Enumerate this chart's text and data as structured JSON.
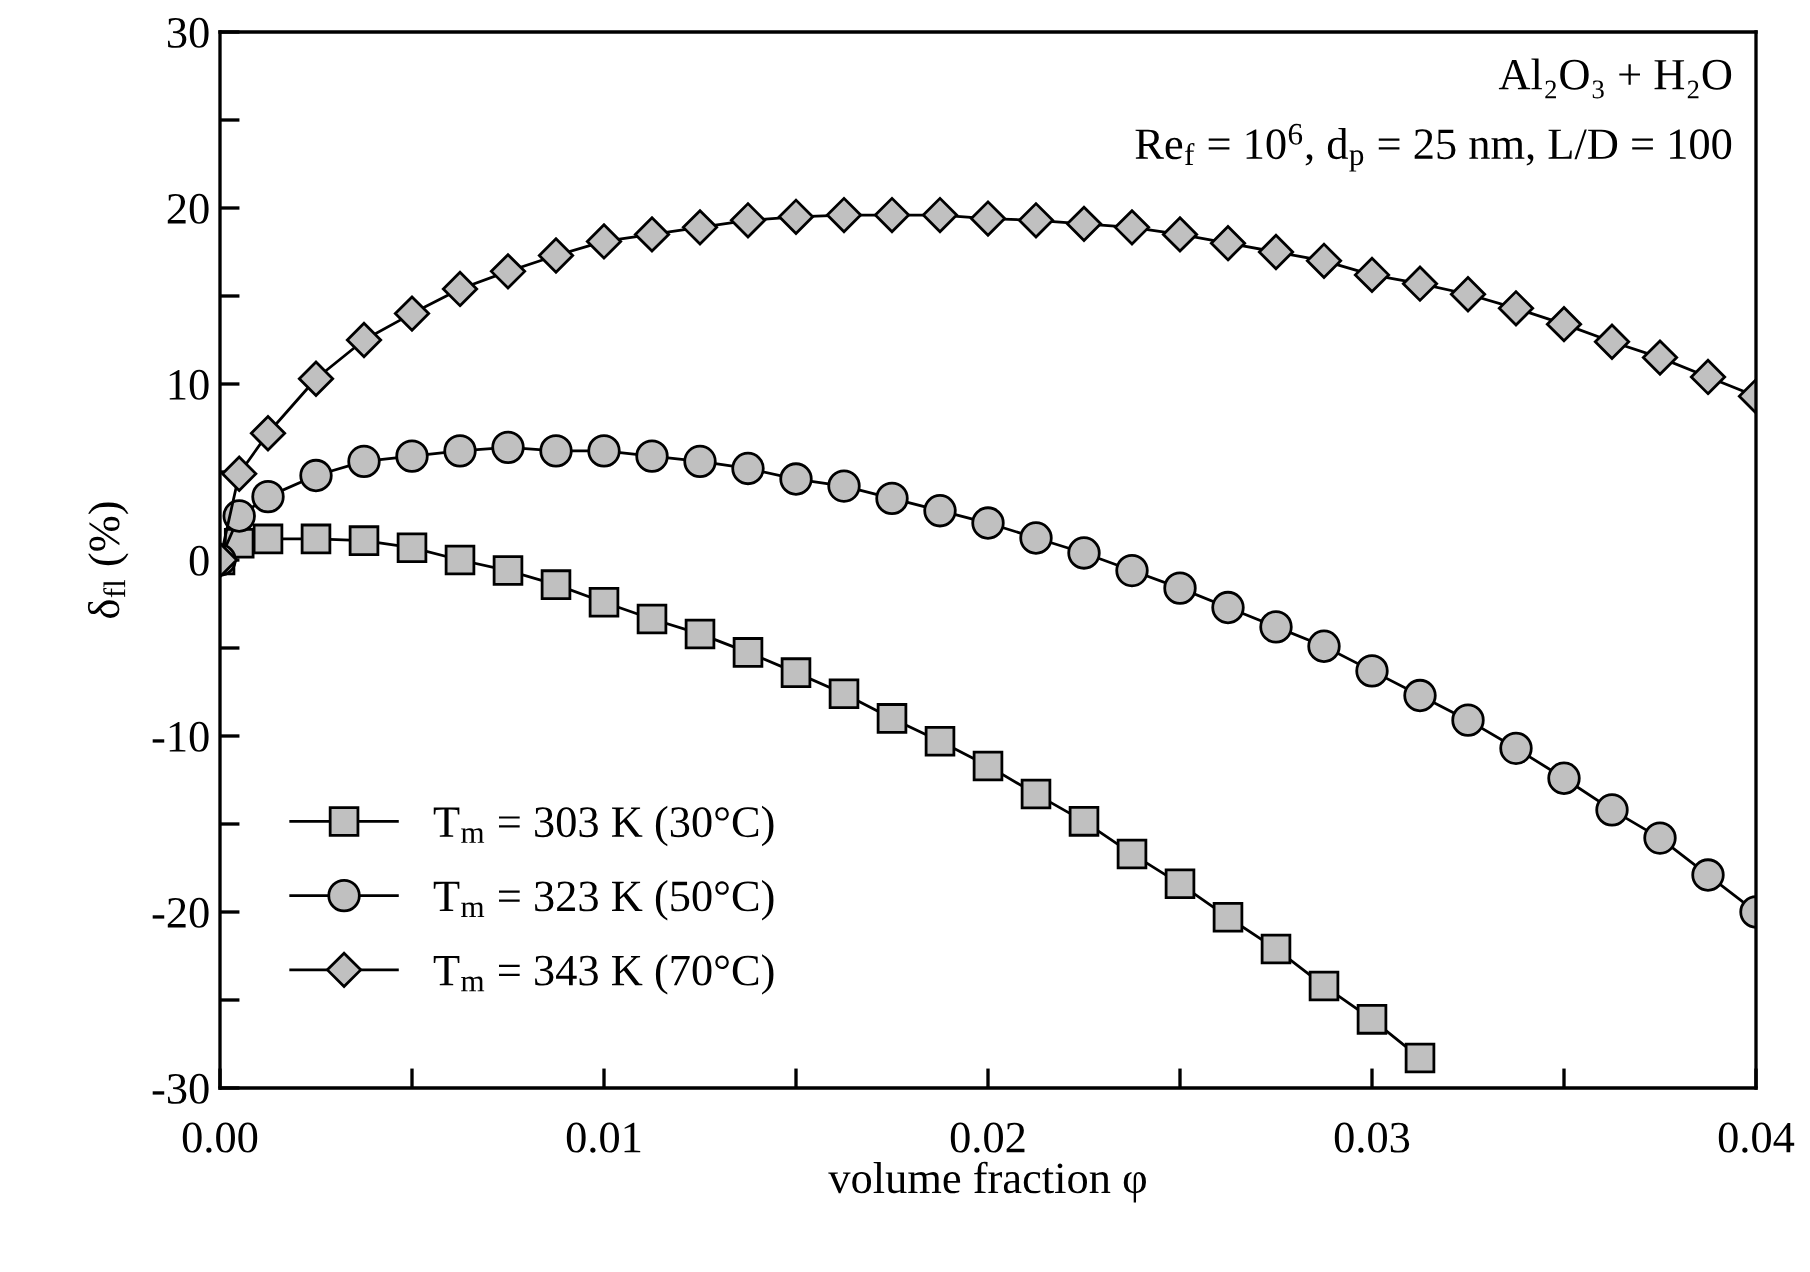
{
  "chart_data": {
    "type": "line",
    "xlabel": "volume fraction φ",
    "ylabel": "δ$_{fl}$ (%)",
    "annotations": [
      "Al₂O₃ + H₂O",
      "Re$_{f}$ = 10$^{6}$, d$_{p}$ = 25 nm, L/D = 100"
    ],
    "x": [
      0,
      0.0005,
      0.00125,
      0.0025,
      0.00375,
      0.005,
      0.00625,
      0.0075,
      0.00875,
      0.01,
      0.01125,
      0.0125,
      0.01375,
      0.015,
      0.01625,
      0.0175,
      0.01875,
      0.02,
      0.02125,
      0.0225,
      0.02375,
      0.025,
      0.02625,
      0.0275,
      0.02875,
      0.03,
      0.03125,
      0.0325,
      0.03375,
      0.035,
      0.03625,
      0.0375,
      0.03875,
      0.04
    ],
    "series": [
      {
        "name": "T$_{m}$ = 303 K (30°C)",
        "color": "#c0c0c0",
        "marker": "square",
        "values": [
          0,
          0.95,
          1.2,
          1.2,
          1.1,
          0.7,
          0,
          -0.6,
          -1.4,
          -2.4,
          -3.35,
          -4.2,
          -5.25,
          -6.4,
          -7.6,
          -9.0,
          -10.3,
          -11.7,
          -13.3,
          -14.85,
          -16.7,
          -18.4,
          -20.3,
          -22.1,
          -24.2,
          -26.1,
          -28.3,
          null,
          null,
          null,
          null,
          null,
          null,
          null
        ]
      },
      {
        "name": "T$_{m}$ = 323 K (50°C)",
        "color": "#c0c0c0",
        "marker": "circle",
        "values": [
          0,
          2.5,
          3.6,
          4.8,
          5.6,
          5.9,
          6.2,
          6.4,
          6.2,
          6.2,
          5.9,
          5.6,
          5.2,
          4.6,
          4.2,
          3.5,
          2.8,
          2.1,
          1.25,
          0.4,
          -0.6,
          -1.6,
          -2.7,
          -3.8,
          -4.9,
          -6.3,
          -7.7,
          -9.1,
          -10.7,
          -12.4,
          -14.2,
          -15.8,
          -17.9,
          -20.0
        ]
      },
      {
        "name": "T$_{m}$ = 343 K (70°C)",
        "color": "#c0c0c0",
        "marker": "diamond",
        "values": [
          0,
          4.9,
          7.2,
          10.3,
          12.5,
          14.0,
          15.4,
          16.4,
          17.3,
          18.1,
          18.5,
          18.9,
          19.3,
          19.5,
          19.6,
          19.6,
          19.6,
          19.4,
          19.3,
          19.1,
          18.9,
          18.5,
          18.0,
          17.5,
          17.0,
          16.2,
          15.7,
          15.1,
          14.3,
          13.4,
          12.4,
          11.5,
          10.4,
          9.3
        ]
      }
    ],
    "xlim": [
      0,
      0.04
    ],
    "xticks": [
      {
        "value": 0,
        "label": "0.00"
      },
      {
        "value": 0.005,
        "label": null
      },
      {
        "value": 0.01,
        "label": "0.01"
      },
      {
        "value": 0.015,
        "label": null
      },
      {
        "value": 0.02,
        "label": "0.02"
      },
      {
        "value": 0.025,
        "label": null
      },
      {
        "value": 0.03,
        "label": "0.03"
      },
      {
        "value": 0.035,
        "label": null
      },
      {
        "value": 0.04,
        "label": "0.04"
      }
    ],
    "ylim": [
      -30,
      30
    ],
    "yticks": [
      -30,
      {
        "value": -25,
        "label": null
      },
      -20,
      {
        "value": -15,
        "label": null
      },
      -10,
      {
        "value": -5,
        "label": null
      },
      0,
      {
        "value": 5,
        "label": null
      },
      10,
      {
        "value": 15,
        "label": null
      },
      20,
      {
        "value": 25,
        "label": null
      },
      30
    ],
    "grid": false,
    "legend": "bottom left",
    "line_style": "solid"
  }
}
